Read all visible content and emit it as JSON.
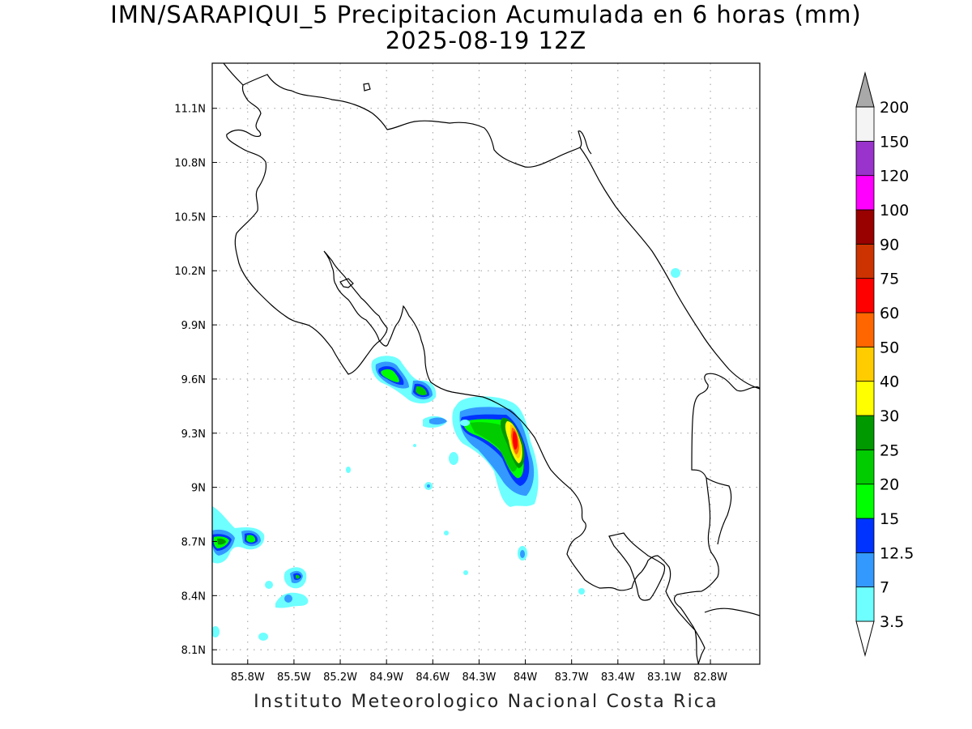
{
  "title": {
    "line1": "IMN/SARAPIQUI_5 Precipitacion Acumulada en 6 horas (mm)",
    "line2": "2025-08-19 12Z"
  },
  "footer": "Instituto Meteorologico Nacional Costa Rica",
  "map": {
    "lon_range": [
      -86.03,
      -82.48
    ],
    "lat_range": [
      8.02,
      11.35
    ],
    "lon_ticks": [
      "85.8W",
      "85.5W",
      "85.2W",
      "84.9W",
      "84.6W",
      "84.3W",
      "84W",
      "83.7W",
      "83.4W",
      "83.1W",
      "82.8W"
    ],
    "lat_ticks": [
      "11.1N",
      "10.8N",
      "10.5N",
      "10.2N",
      "9.9N",
      "9.6N",
      "9.3N",
      "9N",
      "8.7N",
      "8.4N",
      "8.1N"
    ],
    "gridlines": "dotted"
  },
  "colorbar": {
    "unit": "mm",
    "levels": [
      "3.5",
      "7",
      "12.5",
      "15",
      "20",
      "25",
      "30",
      "40",
      "50",
      "60",
      "75",
      "90",
      "100",
      "120",
      "150",
      "200"
    ],
    "colors": [
      "#6effff",
      "#3399ff",
      "#0033ff",
      "#00ff00",
      "#00cc00",
      "#009900",
      "#ffff00",
      "#ffcc00",
      "#ff6600",
      "#ff0000",
      "#cc3300",
      "#990000",
      "#ff00ff",
      "#9933cc",
      "#f4f4f4",
      "#a9a9a9"
    ],
    "extend": "both"
  },
  "legend_colors": {
    "light_cyan": "#6effff",
    "blue": "#3399ff",
    "dark_blue": "#0033ff",
    "green": "#00ff00",
    "mid_green": "#00cc00",
    "dark_green": "#009900",
    "yellow": "#ffff00",
    "orange_yellow": "#ffcc00",
    "red": "#ff0000"
  }
}
